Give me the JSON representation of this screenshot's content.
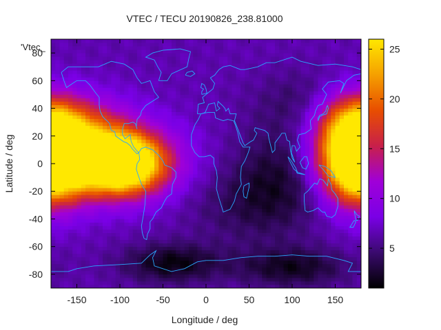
{
  "chart_data": {
    "type": "heatmap",
    "title": "VTEC / TECU 20190826_238.81000",
    "xlabel": "Longitude / deg",
    "ylabel": "Latitude / deg",
    "key_label": "'Vtec_",
    "xlim": [
      -180,
      180
    ],
    "ylim": [
      -90,
      90
    ],
    "xticks": [
      -150,
      -100,
      -50,
      0,
      50,
      100,
      150
    ],
    "yticks": [
      -80,
      -60,
      -40,
      -20,
      0,
      20,
      40,
      60,
      80
    ],
    "grid": false,
    "colorbar": {
      "range": [
        1,
        26
      ],
      "ticks": [
        5,
        10,
        15,
        20,
        25
      ],
      "colors": [
        "#000000",
        "#3a0a6e",
        "#7a00e6",
        "#a000d8",
        "#c8204a",
        "#e84e00",
        "#f5a000",
        "#ffe800"
      ]
    },
    "field": {
      "background": 6.5,
      "peaks": [
        {
          "lon": -125,
          "lat": 2,
          "value": 25,
          "width_lon": 55,
          "width_lat": 18
        },
        {
          "lon": -95,
          "lat": 0,
          "value": 24,
          "width_lon": 30,
          "width_lat": 14
        },
        {
          "lon": 170,
          "lat": 5,
          "value": 20,
          "width_lon": 30,
          "width_lat": 22
        },
        {
          "lon": -180,
          "lat": 5,
          "value": 20,
          "width_lon": 25,
          "width_lat": 22
        },
        {
          "lon": -150,
          "lat": 30,
          "value": 14,
          "width_lon": 40,
          "width_lat": 15
        },
        {
          "lon": 160,
          "lat": 35,
          "value": 12,
          "width_lon": 30,
          "width_lat": 15
        }
      ],
      "troughs": [
        {
          "lon": 90,
          "lat": -5,
          "value": 3,
          "width_lon": 40,
          "width_lat": 25
        },
        {
          "lon": 50,
          "lat": -30,
          "value": 4,
          "width_lon": 50,
          "width_lat": 20
        },
        {
          "lon": -40,
          "lat": -72,
          "value": 1.5,
          "width_lon": 40,
          "width_lat": 10
        },
        {
          "lon": 100,
          "lat": -75,
          "value": 2,
          "width_lon": 45,
          "width_lat": 10
        },
        {
          "lon": 120,
          "lat": 45,
          "value": 4,
          "width_lon": 40,
          "width_lat": 15
        }
      ]
    },
    "coastline_color": "#2aa8ff"
  }
}
